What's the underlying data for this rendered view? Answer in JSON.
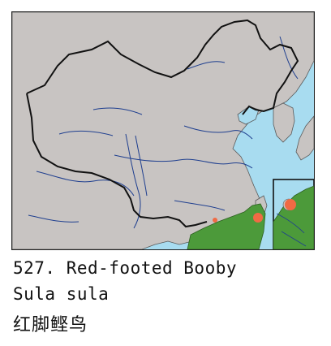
{
  "caption": {
    "number_and_common_name": "527. Red-footed Booby",
    "scientific_name": "Sula sula",
    "chinese_name": "红脚鲣鸟"
  },
  "colors": {
    "sea": "#a8dcf0",
    "land": "#c8c4c2",
    "river": "#1f3f8f",
    "border": "#111111",
    "range": "#4c9a3a",
    "record": "#f06a44"
  },
  "legend_elements": [
    "range-area",
    "record-point"
  ]
}
